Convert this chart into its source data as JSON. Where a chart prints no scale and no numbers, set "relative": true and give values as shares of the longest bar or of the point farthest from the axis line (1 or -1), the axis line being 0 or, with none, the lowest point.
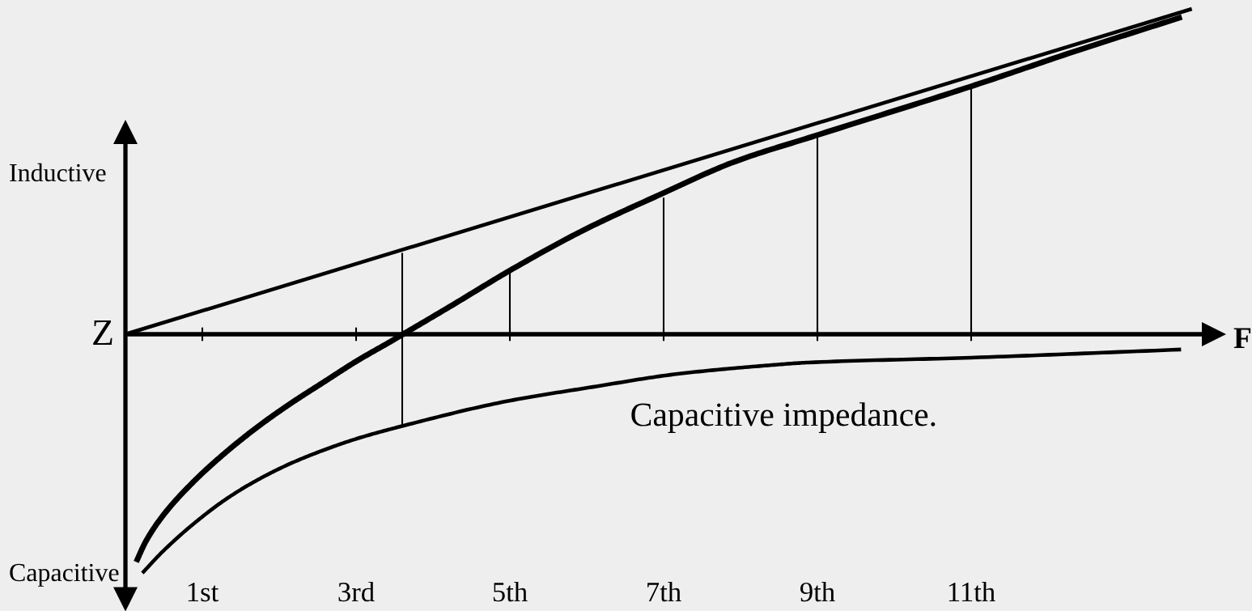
{
  "chart_data": {
    "type": "line",
    "relative": true,
    "tick_labels": "x",
    "xlabel": "F",
    "ylabel": "Z",
    "xlim": [
      0,
      14
    ],
    "xticks": [
      {
        "value": 1,
        "label": "1st"
      },
      {
        "value": 3,
        "label": "3rd"
      },
      {
        "value": 5,
        "label": "5th"
      },
      {
        "value": 7,
        "label": "7th"
      },
      {
        "value": 9,
        "label": "9th"
      },
      {
        "value": 11,
        "label": "11th"
      }
    ],
    "annotations": [
      "Inductive",
      "Capacitive"
    ],
    "series": [
      {
        "color": "#000000",
        "x": [
          0,
          13.87
        ],
        "values": [
          0,
          1
        ]
      },
      {
        "color": "#000000",
        "x": [
          0.14,
          0.26,
          0.48,
          0.9,
          1.32,
          1.74,
          2.16,
          2.58,
          3.01,
          3.43,
          3.61,
          4.22,
          5.03,
          5.96,
          6.96,
          7.92,
          8.97,
          11.0,
          12.38,
          13.74
        ],
        "values": [
          -0.7,
          -0.639,
          -0.56,
          -0.45,
          -0.36,
          -0.281,
          -0.211,
          -0.147,
          -0.082,
          -0.025,
          0,
          0.085,
          0.2,
          0.32,
          0.43,
          0.53,
          0.61,
          0.762,
          0.872,
          0.975
        ]
      },
      {
        "name": "Capacitive impedance.",
        "color": "#000000",
        "x": [
          0.22,
          0.48,
          0.9,
          1.32,
          1.74,
          2.16,
          2.58,
          3.01,
          3.62,
          4.96,
          6.08,
          7.18,
          8.29,
          8.88,
          11.0,
          13.73
        ],
        "values": [
          -0.734,
          -0.669,
          -0.58,
          -0.505,
          -0.445,
          -0.396,
          -0.356,
          -0.321,
          -0.281,
          -0.206,
          -0.162,
          -0.122,
          -0.097,
          -0.087,
          -0.072,
          -0.047
        ]
      },
      {
        "color": "#000000",
        "x": [
          3.6,
          3.6
        ],
        "values": [
          -0.28,
          0.25
        ]
      },
      {
        "color": "#000000",
        "x": [
          5,
          5
        ],
        "values": [
          0,
          0.19
        ]
      },
      {
        "color": "#000000",
        "x": [
          7,
          7
        ],
        "values": [
          0,
          0.42
        ]
      },
      {
        "color": "#000000",
        "x": [
          9,
          9
        ],
        "values": [
          0,
          0.61
        ]
      },
      {
        "color": "#000000",
        "x": [
          11,
          11
        ],
        "values": [
          0,
          0.76
        ]
      }
    ]
  }
}
